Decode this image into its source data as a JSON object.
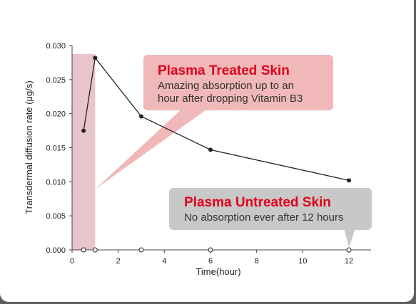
{
  "chart_data": {
    "type": "line",
    "xlabel": "Time(hour)",
    "ylabel": "Transdermal diffusion rate (μg/s)",
    "xlim": [
      0,
      13
    ],
    "ylim": [
      0,
      0.03
    ],
    "xticks": [
      "0",
      "2",
      "4",
      "6",
      "8",
      "10",
      "12"
    ],
    "yticks": [
      "0.000",
      "0.005",
      "0.010",
      "0.015",
      "0.020",
      "0.025",
      "0.030"
    ],
    "highlight_x_range": [
      0,
      1
    ],
    "series": [
      {
        "key": "treated",
        "x": [
          0.5,
          1,
          3,
          6,
          12
        ],
        "y": [
          0.0175,
          0.0282,
          0.0196,
          0.0147,
          0.0102
        ],
        "marker": "filled",
        "line": true
      },
      {
        "key": "untreated",
        "x": [
          0.5,
          1,
          3,
          6,
          12
        ],
        "y": [
          0,
          0,
          0,
          0,
          0
        ],
        "marker": "open",
        "line": false
      }
    ],
    "annotations": [
      {
        "title": "Plasma Treated Skin",
        "lines": [
          "Amazing absorption up to an",
          "hour after dropping Vitamin B3"
        ]
      },
      {
        "title": "Plasma Untreated Skin",
        "lines": [
          "No absorption ever after 12 hours"
        ]
      }
    ]
  },
  "colors": {
    "highlight": "#e8c4cd",
    "line": "#222222",
    "callout_pink": "#f0b8b8",
    "callout_gray": "#c8c8c8",
    "title_red": "#e0001b"
  }
}
